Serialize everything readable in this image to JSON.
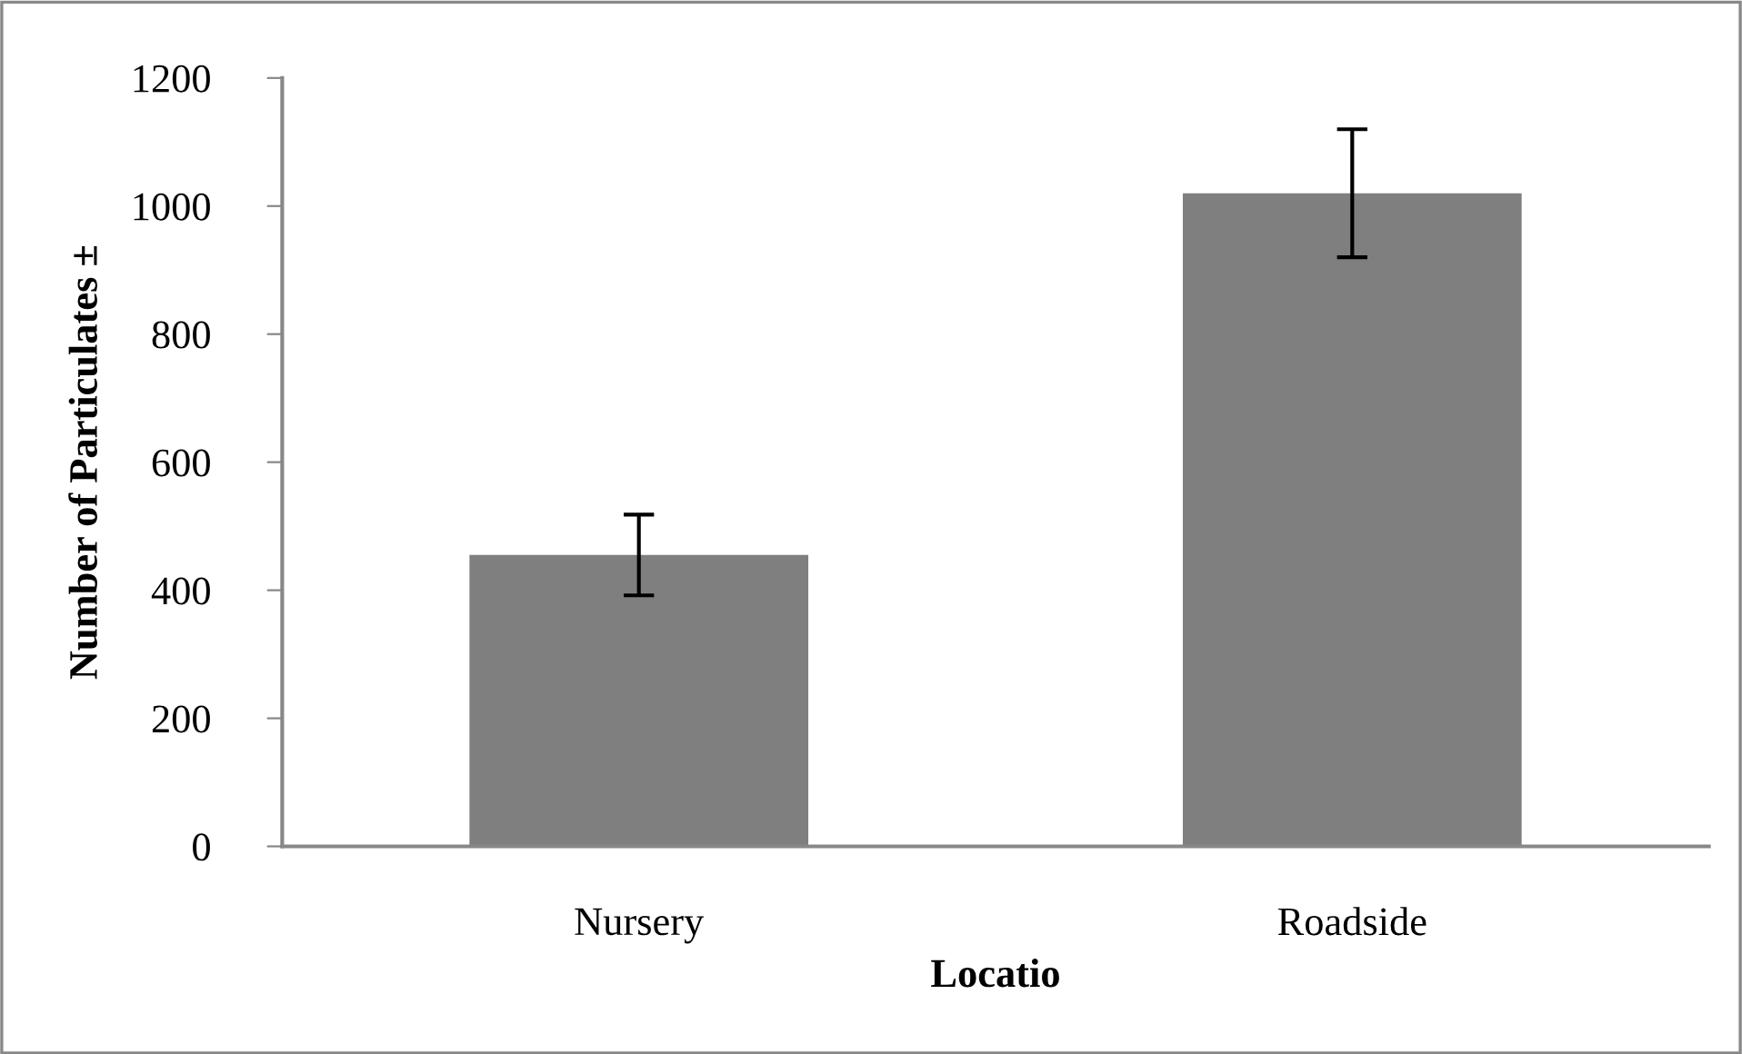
{
  "chart_data": {
    "type": "bar",
    "xlabel": "Locatio",
    "ylabel": "Number of Particulates ±",
    "categories": [
      "Nursery",
      "Roadside"
    ],
    "values": [
      455,
      1020
    ],
    "errors": [
      63,
      100
    ],
    "color": "#7f7f7f",
    "ylim": [
      0,
      1200
    ],
    "yticks": [
      0,
      200,
      400,
      600,
      800,
      1000,
      1200
    ],
    "grid": false,
    "legend": false
  }
}
